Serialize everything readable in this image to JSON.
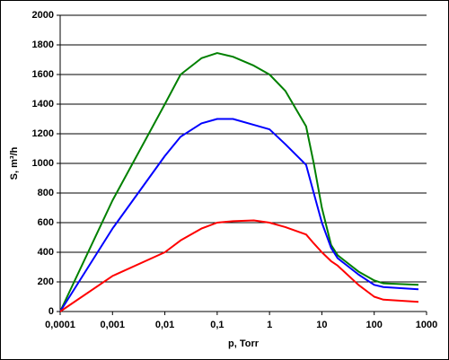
{
  "chart_data": {
    "type": "line",
    "x_label": "p, Torr",
    "y_label": "S, m³/h",
    "x": [
      0.0001,
      0.001,
      0.01,
      0.02,
      0.05,
      0.1,
      0.2,
      0.5,
      1,
      2,
      5,
      7,
      10,
      15,
      20,
      50,
      100,
      150,
      700
    ],
    "series": [
      {
        "color": "#008000",
        "values": [
          0,
          750,
          1400,
          1600,
          1710,
          1745,
          1720,
          1660,
          1600,
          1490,
          1250,
          1000,
          700,
          450,
          380,
          270,
          210,
          190,
          180
        ]
      },
      {
        "color": "#0000ff",
        "values": [
          0,
          560,
          1050,
          1180,
          1270,
          1300,
          1300,
          1260,
          1230,
          1130,
          990,
          800,
          600,
          430,
          360,
          250,
          180,
          165,
          150
        ]
      },
      {
        "color": "#ff0000",
        "values": [
          0,
          240,
          400,
          480,
          560,
          600,
          610,
          615,
          600,
          570,
          520,
          460,
          400,
          340,
          310,
          180,
          100,
          80,
          65
        ]
      }
    ],
    "xlim": [
      0.0001,
      1000
    ],
    "xticks": [
      {
        "value": 0.0001,
        "label": "0,0001"
      },
      {
        "value": 0.001,
        "label": "0,001"
      },
      {
        "value": 0.01,
        "label": "0,01"
      },
      {
        "value": 0.1,
        "label": "0,1"
      },
      1,
      10,
      100,
      1000
    ],
    "ylim": [
      0,
      2000
    ],
    "yticks": [
      0,
      200,
      400,
      600,
      800,
      1000,
      1200,
      1400,
      1600,
      1800,
      2000
    ],
    "x_log": true,
    "grid": true
  }
}
